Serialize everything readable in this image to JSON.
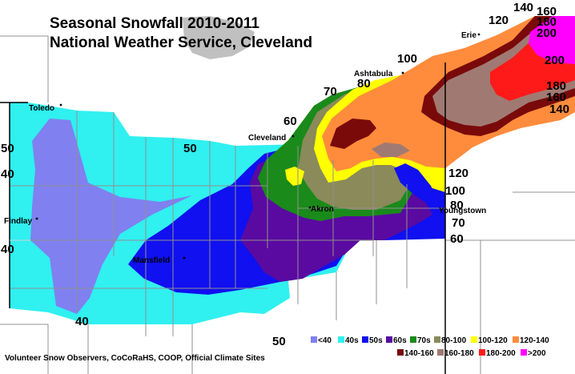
{
  "title_line1": "Seasonal Snowfall 2010-2011",
  "title_line2": "National Weather Service, Cleveland",
  "footer": "Volunteer Snow Observers, CoCoRaHS, COOP, Official Climate Sites",
  "cities": [
    "Toledo",
    "Findlay",
    "Mansfield",
    "Cleveland",
    "Akron",
    "Ashtabula",
    "Erie",
    "Youngstown"
  ],
  "contour_labels": [
    "40",
    "50",
    "60",
    "70",
    "80",
    "100",
    "120",
    "140",
    "160",
    "180",
    "200",
    "40",
    "40",
    "50",
    "50",
    "60",
    "70",
    "80",
    "100",
    "120",
    "200",
    "180",
    "160",
    "140"
  ],
  "legend": [
    {
      "label": "<40",
      "color": "#8080f0"
    },
    {
      "label": "40s",
      "color": "#30f0f0"
    },
    {
      "label": "50s",
      "color": "#1010f0"
    },
    {
      "label": "60s",
      "color": "#5a0aa0"
    },
    {
      "label": "70s",
      "color": "#1a8a1a"
    },
    {
      "label": "80-100",
      "color": "#8a8a5a"
    },
    {
      "label": "100-120",
      "color": "#ffff00"
    },
    {
      "label": "120-140",
      "color": "#ff8c3c"
    },
    {
      "label": "140-160",
      "color": "#7a0a0a"
    },
    {
      "label": "160-180",
      "color": "#a07a72"
    },
    {
      "label": "180-200",
      "color": "#ff1a1a"
    },
    {
      "label": ">200",
      "color": "#ff00ff"
    }
  ]
}
